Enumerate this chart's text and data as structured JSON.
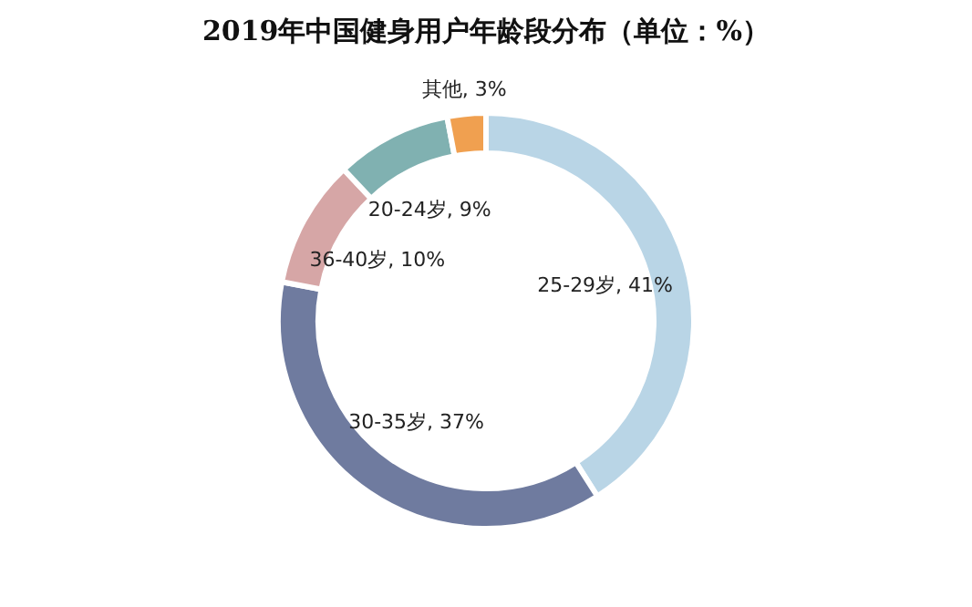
{
  "chart_data": {
    "type": "donut",
    "title": "2019年中国健身用户年龄段分布（单位：%）",
    "categories": [
      "25-29岁",
      "30-35岁",
      "36-40岁",
      "20-24岁",
      "其他"
    ],
    "values": [
      41,
      37,
      10,
      9,
      3
    ],
    "value_labels": [
      "41%",
      "37%",
      "10%",
      "9%",
      "3%"
    ],
    "colors": [
      "#b9d5e6",
      "#6f7b9f",
      "#d6a6a6",
      "#80b1b1",
      "#f0a050"
    ],
    "legend": false
  }
}
